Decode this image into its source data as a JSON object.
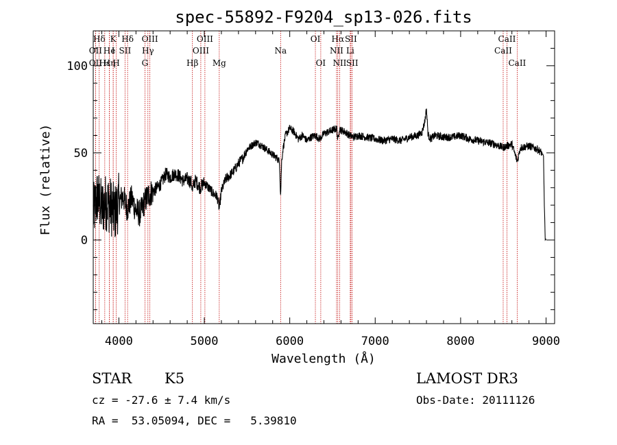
{
  "chart_data": {
    "type": "line",
    "title": "spec-55892-F9204_sp13-026.fits",
    "xlabel": "Wavelength (Å)",
    "ylabel": "Flux (relative)",
    "xlim": [
      3700,
      9100
    ],
    "ylim": [
      -48,
      120
    ],
    "x_ticks": [
      4000,
      5000,
      6000,
      7000,
      8000,
      9000
    ],
    "y_ticks": [
      0,
      50,
      100
    ],
    "grid": false,
    "spectrum_anchors": {
      "x": [
        3700,
        3750,
        3800,
        3850,
        3900,
        3950,
        4000,
        4050,
        4100,
        4150,
        4200,
        4250,
        4300,
        4350,
        4400,
        4450,
        4500,
        4550,
        4600,
        4650,
        4700,
        4750,
        4800,
        4850,
        4862,
        4880,
        4900,
        4950,
        5000,
        5050,
        5100,
        5150,
        5175,
        5200,
        5250,
        5300,
        5350,
        5400,
        5450,
        5500,
        5550,
        5600,
        5650,
        5700,
        5750,
        5800,
        5850,
        5880,
        5893,
        5905,
        5920,
        5950,
        6000,
        6050,
        6100,
        6150,
        6200,
        6250,
        6300,
        6350,
        6400,
        6450,
        6500,
        6550,
        6563,
        6580,
        6600,
        6650,
        6700,
        6750,
        6800,
        6900,
        7000,
        7100,
        7200,
        7300,
        7400,
        7500,
        7550,
        7580,
        7600,
        7620,
        7650,
        7700,
        7800,
        7900,
        8000,
        8100,
        8200,
        8300,
        8400,
        8498,
        8542,
        8600,
        8662,
        8700,
        8800,
        8900,
        8950,
        8970,
        8980,
        8990,
        9000
      ],
      "y": [
        15,
        25,
        18,
        22,
        20,
        15,
        22,
        25,
        18,
        24,
        17,
        15,
        22,
        26,
        28,
        30,
        33,
        38,
        36,
        38,
        37,
        34,
        35,
        33,
        28,
        33,
        34,
        30,
        33,
        30,
        27,
        25,
        18,
        28,
        35,
        37,
        40,
        44,
        47,
        52,
        54,
        56,
        55,
        53,
        51,
        49,
        47,
        45,
        25,
        45,
        52,
        60,
        64,
        62,
        58,
        60,
        57,
        59,
        60,
        58,
        61,
        62,
        63,
        64,
        57,
        64,
        63,
        62,
        60,
        59,
        60,
        59,
        58,
        57,
        58,
        57,
        59,
        60,
        62,
        68,
        75,
        60,
        58,
        60,
        59,
        59,
        60,
        58,
        57,
        56,
        55,
        53,
        54,
        55,
        45,
        53,
        54,
        52,
        50,
        48,
        20,
        0,
        0
      ]
    },
    "emission_lines": [
      {
        "label": "Hδ",
        "x": 3770,
        "row": 1
      },
      {
        "label": "OII",
        "x": 3727,
        "row": 2
      },
      {
        "label": "OII",
        "x": 3727,
        "row": 3
      },
      {
        "label": "Hε",
        "x": 3835,
        "row": 3
      },
      {
        "label": "He",
        "x": 3889,
        "row": 2
      },
      {
        "label": "Hη",
        "x": 3889,
        "row": 3
      },
      {
        "label": "K",
        "x": 3934,
        "row": 1
      },
      {
        "label": "I",
        "x": 3934,
        "row": 2
      },
      {
        "label": "H",
        "x": 3969,
        "row": 3
      },
      {
        "label": "SII",
        "x": 4072,
        "row": 2
      },
      {
        "label": "Hδ",
        "x": 4102,
        "row": 1
      },
      {
        "label": "OIII",
        "x": 4363,
        "row": 1
      },
      {
        "label": "Hγ",
        "x": 4340,
        "row": 2
      },
      {
        "label": "G",
        "x": 4305,
        "row": 3
      },
      {
        "label": "Hβ",
        "x": 4861,
        "row": 3
      },
      {
        "label": "OIII",
        "x": 5007,
        "row": 1
      },
      {
        "label": "OIII",
        "x": 4959,
        "row": 2
      },
      {
        "label": "Mg",
        "x": 5175,
        "row": 3
      },
      {
        "label": "Na",
        "x": 5893,
        "row": 2
      },
      {
        "label": "OI",
        "x": 6300,
        "row": 1
      },
      {
        "label": "OI",
        "x": 6363,
        "row": 3
      },
      {
        "label": "Hα",
        "x": 6563,
        "row": 1
      },
      {
        "label": "SII",
        "x": 6716,
        "row": 1
      },
      {
        "label": "NII",
        "x": 6548,
        "row": 2
      },
      {
        "label": "Li",
        "x": 6708,
        "row": 2
      },
      {
        "label": "NII",
        "x": 6584,
        "row": 3
      },
      {
        "label": "SII",
        "x": 6731,
        "row": 3
      },
      {
        "label": "CaII",
        "x": 8542,
        "row": 1
      },
      {
        "label": "CaII",
        "x": 8498,
        "row": 2
      },
      {
        "label": "CaII",
        "x": 8662,
        "row": 3
      }
    ]
  },
  "info": {
    "object_class": "STAR",
    "subclass": "K5",
    "survey": "LAMOST DR3",
    "redshift": "cz = -27.6 ± 7.4 km/s",
    "obs_date": "Obs-Date: 20111126",
    "coords": "RA =  53.05094, DEC =   5.39810"
  },
  "colors": {
    "axis": "#000000",
    "spectrum": "#000000",
    "line_marker": "#c00000"
  }
}
